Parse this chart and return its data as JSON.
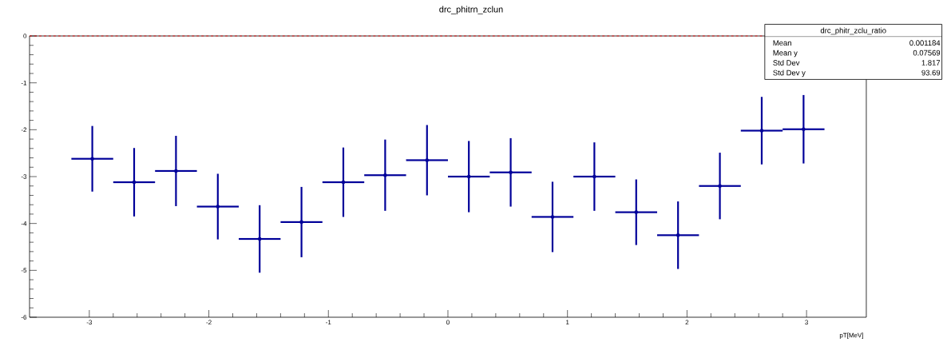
{
  "chart_data": {
    "type": "scatter",
    "title": "drc_phitrn_zclun",
    "xlabel": "pT[MeV]",
    "x": [
      -2.975,
      -2.625,
      -2.275,
      -1.925,
      -1.575,
      -1.225,
      -0.875,
      -0.525,
      -0.175,
      0.175,
      0.525,
      0.875,
      1.225,
      1.575,
      1.925,
      2.275,
      2.625,
      2.975
    ],
    "values": [
      -2.62,
      -3.12,
      -2.88,
      -3.64,
      -4.33,
      -3.97,
      -3.12,
      -2.97,
      -2.65,
      -3.0,
      -2.91,
      -3.86,
      -3.0,
      -3.76,
      -4.25,
      -3.2,
      -2.02,
      -1.99
    ],
    "errors": [
      0.7,
      0.73,
      0.75,
      0.7,
      0.72,
      0.75,
      0.74,
      0.76,
      0.75,
      0.76,
      0.73,
      0.75,
      0.73,
      0.7,
      0.72,
      0.71,
      0.72,
      0.73
    ],
    "xerrors": [
      0.175,
      0.175,
      0.175,
      0.175,
      0.175,
      0.175,
      0.175,
      0.175,
      0.175,
      0.175,
      0.175,
      0.175,
      0.175,
      0.175,
      0.175,
      0.175,
      0.175,
      0.175
    ],
    "color": "#000099",
    "xlim": [
      -3.5,
      3.5
    ],
    "ylim": [
      -6,
      0
    ],
    "xticks": [
      -3,
      -2,
      -1,
      0,
      1,
      2,
      3
    ],
    "yticks": [
      -6,
      -5,
      -4,
      -3,
      -2,
      -1,
      0
    ],
    "ref_lines": [
      {
        "axis": "y",
        "value": 0,
        "color": "#ff0000",
        "line_style": "dashed"
      }
    ],
    "annotations": [
      "drc_phitr_zclu_ratio",
      "Mean",
      "0.001184",
      "Mean y",
      "0.07569",
      "Std Dev",
      "1.817",
      "Std Dev y",
      "93.69"
    ]
  }
}
